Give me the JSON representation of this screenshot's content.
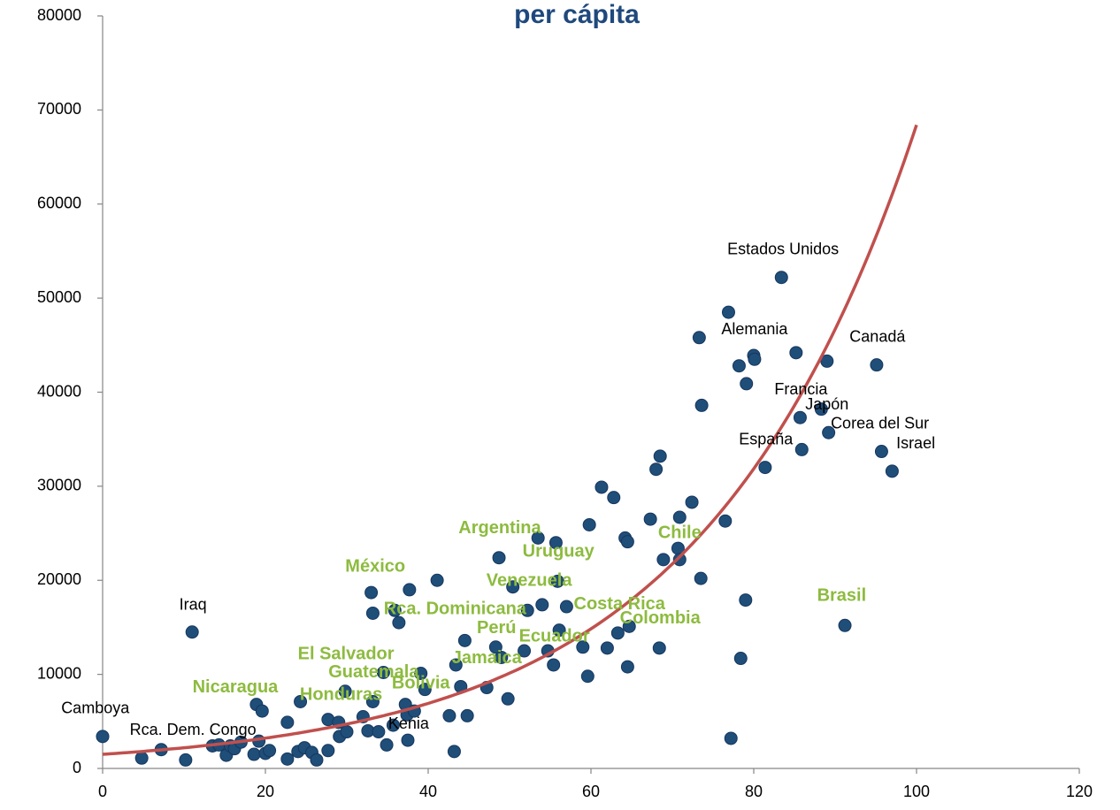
{
  "chart_data": {
    "type": "scatter",
    "title": "per cápita",
    "title_color": "#1f497d",
    "color": "#1f4e79",
    "x": [
      0,
      4.8,
      7.2,
      10.2,
      11,
      13.5,
      14.3,
      15.2,
      15.7,
      16.2,
      17,
      18.6,
      18.9,
      19.2,
      19.6,
      20,
      20.5,
      22.7,
      22.7,
      24,
      24.3,
      24.8,
      25.7,
      26.3,
      27.7,
      27.7,
      29,
      29.1,
      29.8,
      30,
      32,
      32.6,
      33,
      33.2,
      33.2,
      33.9,
      34.5,
      34.9,
      35.7,
      35.9,
      36.4,
      37.2,
      37.4,
      37.5,
      37.7,
      38.3,
      39.1,
      39.6,
      41.1,
      42.6,
      43.2,
      43.4,
      44,
      44.5,
      44.8,
      47.2,
      48.3,
      48.7,
      49,
      49.8,
      50.4,
      51.8,
      52.2,
      53.5,
      54,
      54.7,
      55.4,
      55.7,
      55.9,
      56.1,
      57,
      59,
      59.6,
      59.8,
      61.3,
      62,
      62.8,
      63.3,
      64.2,
      64.5,
      64.5,
      64.7,
      67.3,
      68,
      68.4,
      68.5,
      68.9,
      70.7,
      70.9,
      70.9,
      72.4,
      73.3,
      73.5,
      73.6,
      76.5,
      76.9,
      77.2,
      78.2,
      78.4,
      79,
      79.1,
      80,
      80.1,
      81.4,
      83.4,
      85.2,
      85.7,
      85.9,
      88.3,
      89,
      89.2,
      91.2,
      95.1,
      95.7,
      97
    ],
    "values": [
      3400,
      1100,
      2000,
      900,
      14500,
      2400,
      2500,
      1400,
      2400,
      2100,
      2800,
      1500,
      6800,
      2900,
      6100,
      1600,
      1900,
      4900,
      1000,
      1800,
      7100,
      2200,
      1700,
      900,
      5200,
      1900,
      4900,
      3400,
      8200,
      3900,
      5500,
      4000,
      18700,
      16500,
      7100,
      3900,
      10200,
      2500,
      4600,
      16800,
      15500,
      6800,
      5700,
      3000,
      19000,
      6100,
      10100,
      8400,
      20000,
      5600,
      1800,
      11000,
      8700,
      13600,
      5600,
      8600,
      12900,
      22400,
      11800,
      7400,
      19300,
      12500,
      16800,
      24500,
      17400,
      12500,
      11000,
      24000,
      19900,
      14700,
      17200,
      12900,
      9800,
      25900,
      29900,
      12800,
      28800,
      14400,
      24500,
      24100,
      10800,
      15100,
      26500,
      31800,
      12800,
      33200,
      22200,
      23400,
      26700,
      22200,
      28300,
      45800,
      20200,
      38600,
      26300,
      48500,
      3200,
      42800,
      11700,
      17900,
      40900,
      43900,
      43500,
      32000,
      52200,
      44200,
      37300,
      33900,
      38200,
      43300,
      35700,
      15200,
      42900,
      33700,
      31600
    ],
    "trendline": {
      "type": "exponential",
      "a": 1500,
      "b": 0.0382,
      "color": "#c0504d"
    },
    "xlim": [
      0,
      120
    ],
    "ylim": [
      0,
      80000
    ],
    "xticks": [
      0,
      20,
      40,
      60,
      80,
      100,
      120
    ],
    "yticks": [
      0,
      10000,
      20000,
      30000,
      40000,
      50000,
      60000,
      70000,
      80000
    ],
    "annotations": [
      {
        "color": "#000000",
        "bold": false,
        "items": [
          {
            "text": "Camboya",
            "x": -0.9,
            "y": 6300
          },
          {
            "text": "Rca. Dem. Congo",
            "x": 11.1,
            "y": 4000
          },
          {
            "text": "Iraq",
            "x": 11.1,
            "y": 17300
          },
          {
            "text": "Kenia",
            "x": 37.6,
            "y": 4700
          },
          {
            "text": "Estados Unidos",
            "x": 83.6,
            "y": 55100
          },
          {
            "text": "Alemania",
            "x": 80.1,
            "y": 46600
          },
          {
            "text": "Canadá",
            "x": 95.2,
            "y": 45800
          },
          {
            "text": "Francia",
            "x": 85.8,
            "y": 40200
          },
          {
            "text": "Japón",
            "x": 89,
            "y": 38600
          },
          {
            "text": "Corea del Sur",
            "x": 95.5,
            "y": 36600
          },
          {
            "text": "España",
            "x": 81.5,
            "y": 34900
          },
          {
            "text": "Israel",
            "x": 99.9,
            "y": 34500
          }
        ]
      },
      {
        "color": "#8dbb3f",
        "bold": true,
        "items": [
          {
            "text": "Argentina",
            "x": 48.8,
            "y": 25500
          },
          {
            "text": "Chile",
            "x": 70.9,
            "y": 25000
          },
          {
            "text": "Uruguay",
            "x": 56,
            "y": 23000
          },
          {
            "text": "México",
            "x": 33.5,
            "y": 21400
          },
          {
            "text": "Venezuela",
            "x": 52.4,
            "y": 19900
          },
          {
            "text": "Brasil",
            "x": 90.8,
            "y": 18300
          },
          {
            "text": "Rca. Dominicana",
            "x": 43.3,
            "y": 16900
          },
          {
            "text": "Costa Rica",
            "x": 63.5,
            "y": 17400
          },
          {
            "text": "Colombia",
            "x": 68.5,
            "y": 15900
          },
          {
            "text": "Perú",
            "x": 48.4,
            "y": 14900
          },
          {
            "text": "Ecuador",
            "x": 55.5,
            "y": 14000
          },
          {
            "text": "El Salvador",
            "x": 29.9,
            "y": 12100
          },
          {
            "text": "Jamaica",
            "x": 47.2,
            "y": 11700
          },
          {
            "text": "Guatemala",
            "x": 33.3,
            "y": 10200
          },
          {
            "text": "Bolivia",
            "x": 39.1,
            "y": 9000
          },
          {
            "text": "Nicaragua",
            "x": 16.3,
            "y": 8600
          },
          {
            "text": "Honduras",
            "x": 29.3,
            "y": 7800
          }
        ]
      }
    ]
  }
}
